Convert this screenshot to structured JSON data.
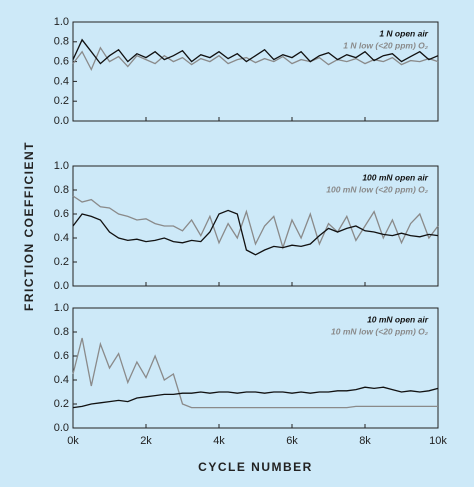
{
  "chart_data": [
    {
      "type": "line",
      "xlim": [
        0,
        10000
      ],
      "ylim": [
        0,
        1
      ],
      "yticks": [
        {
          "value": 0,
          "label": "0.0"
        },
        0.2,
        0.4,
        0.6,
        0.8,
        {
          "value": 1,
          "label": "1.0"
        }
      ],
      "x": [
        0,
        250,
        500,
        750,
        1000,
        1250,
        1500,
        1750,
        2000,
        2250,
        2500,
        2750,
        3000,
        3250,
        3500,
        3750,
        4000,
        4250,
        4500,
        4750,
        5000,
        5250,
        5500,
        5750,
        6000,
        6250,
        6500,
        6750,
        7000,
        7250,
        7500,
        7750,
        8000,
        8250,
        8500,
        8750,
        9000,
        9250,
        9500,
        9750,
        10000
      ],
      "series": [
        {
          "name": "1 N open air",
          "color": "#111111",
          "values": [
            0.62,
            0.82,
            0.7,
            0.58,
            0.66,
            0.72,
            0.6,
            0.68,
            0.64,
            0.7,
            0.62,
            0.66,
            0.71,
            0.6,
            0.67,
            0.64,
            0.7,
            0.63,
            0.68,
            0.6,
            0.66,
            0.72,
            0.62,
            0.67,
            0.64,
            0.7,
            0.6,
            0.66,
            0.69,
            0.62,
            0.67,
            0.64,
            0.7,
            0.61,
            0.66,
            0.68,
            0.6,
            0.65,
            0.7,
            0.62,
            0.66
          ]
        },
        {
          "name": "1 N low (<20 ppm) O₂",
          "color": "#8a8a8a",
          "values": [
            0.58,
            0.7,
            0.52,
            0.74,
            0.6,
            0.65,
            0.55,
            0.66,
            0.62,
            0.58,
            0.66,
            0.6,
            0.64,
            0.57,
            0.63,
            0.6,
            0.66,
            0.58,
            0.62,
            0.64,
            0.59,
            0.63,
            0.6,
            0.65,
            0.58,
            0.62,
            0.6,
            0.64,
            0.57,
            0.62,
            0.6,
            0.63,
            0.58,
            0.62,
            0.6,
            0.64,
            0.57,
            0.61,
            0.6,
            0.63,
            0.6
          ]
        }
      ]
    },
    {
      "type": "line",
      "xlim": [
        0,
        10000
      ],
      "ylim": [
        0,
        1
      ],
      "yticks": [
        {
          "value": 0,
          "label": "0.0"
        },
        0.2,
        0.4,
        0.6,
        0.8,
        {
          "value": 1,
          "label": "1.0"
        }
      ],
      "ylabel": "FRICTION COEFFICIENT",
      "x": [
        0,
        250,
        500,
        750,
        1000,
        1250,
        1500,
        1750,
        2000,
        2250,
        2500,
        2750,
        3000,
        3250,
        3500,
        3750,
        4000,
        4250,
        4500,
        4750,
        5000,
        5250,
        5500,
        5750,
        6000,
        6250,
        6500,
        6750,
        7000,
        7250,
        7500,
        7750,
        8000,
        8250,
        8500,
        8750,
        9000,
        9250,
        9500,
        9750,
        10000
      ],
      "series": [
        {
          "name": "100 mN open air",
          "color": "#111111",
          "values": [
            0.5,
            0.6,
            0.58,
            0.55,
            0.45,
            0.4,
            0.38,
            0.39,
            0.37,
            0.38,
            0.4,
            0.37,
            0.36,
            0.38,
            0.37,
            0.45,
            0.6,
            0.63,
            0.6,
            0.3,
            0.26,
            0.3,
            0.33,
            0.32,
            0.34,
            0.33,
            0.35,
            0.42,
            0.48,
            0.45,
            0.48,
            0.5,
            0.46,
            0.45,
            0.43,
            0.42,
            0.44,
            0.42,
            0.41,
            0.43,
            0.42
          ]
        },
        {
          "name": "100 mN low (<20 ppm) O₂",
          "color": "#8a8a8a",
          "values": [
            0.75,
            0.7,
            0.72,
            0.66,
            0.65,
            0.6,
            0.58,
            0.55,
            0.56,
            0.52,
            0.5,
            0.5,
            0.46,
            0.55,
            0.42,
            0.58,
            0.36,
            0.52,
            0.4,
            0.62,
            0.35,
            0.5,
            0.58,
            0.32,
            0.55,
            0.4,
            0.6,
            0.35,
            0.52,
            0.45,
            0.58,
            0.38,
            0.5,
            0.62,
            0.4,
            0.55,
            0.36,
            0.52,
            0.6,
            0.4,
            0.5
          ]
        }
      ]
    },
    {
      "type": "line",
      "xlim": [
        0,
        10000
      ],
      "ylim": [
        0,
        1
      ],
      "yticks": [
        {
          "value": 0,
          "label": "0.0"
        },
        0.2,
        0.4,
        0.6,
        0.8,
        {
          "value": 1,
          "label": "1.0"
        }
      ],
      "xlabel": "CYCLE NUMBER",
      "xticks": [
        {
          "value": 0,
          "label": "0k"
        },
        {
          "value": 2000,
          "label": "2k"
        },
        {
          "value": 4000,
          "label": "4k"
        },
        {
          "value": 6000,
          "label": "6k"
        },
        {
          "value": 8000,
          "label": "8k"
        },
        {
          "value": 10000,
          "label": "10k"
        }
      ],
      "x": [
        0,
        250,
        500,
        750,
        1000,
        1250,
        1500,
        1750,
        2000,
        2250,
        2500,
        2750,
        3000,
        3250,
        3500,
        3750,
        4000,
        4250,
        4500,
        4750,
        5000,
        5250,
        5500,
        5750,
        6000,
        6250,
        6500,
        6750,
        7000,
        7250,
        7500,
        7750,
        8000,
        8250,
        8500,
        8750,
        9000,
        9250,
        9500,
        9750,
        10000
      ],
      "series": [
        {
          "name": "10 mN open air",
          "color": "#111111",
          "values": [
            0.17,
            0.18,
            0.2,
            0.21,
            0.22,
            0.23,
            0.22,
            0.25,
            0.26,
            0.27,
            0.28,
            0.28,
            0.29,
            0.29,
            0.3,
            0.29,
            0.3,
            0.3,
            0.29,
            0.3,
            0.3,
            0.29,
            0.3,
            0.3,
            0.29,
            0.3,
            0.29,
            0.3,
            0.3,
            0.31,
            0.31,
            0.32,
            0.34,
            0.33,
            0.34,
            0.32,
            0.3,
            0.31,
            0.3,
            0.31,
            0.33
          ]
        },
        {
          "name": "10 mN low (<20 ppm) O₂",
          "color": "#8a8a8a",
          "values": [
            0.45,
            0.75,
            0.35,
            0.7,
            0.5,
            0.62,
            0.38,
            0.55,
            0.42,
            0.6,
            0.4,
            0.45,
            0.2,
            0.17,
            0.17,
            0.17,
            0.17,
            0.17,
            0.17,
            0.17,
            0.17,
            0.17,
            0.17,
            0.17,
            0.17,
            0.17,
            0.17,
            0.17,
            0.17,
            0.17,
            0.17,
            0.18,
            0.18,
            0.18,
            0.18,
            0.18,
            0.18,
            0.18,
            0.18,
            0.18,
            0.18
          ]
        }
      ]
    }
  ]
}
